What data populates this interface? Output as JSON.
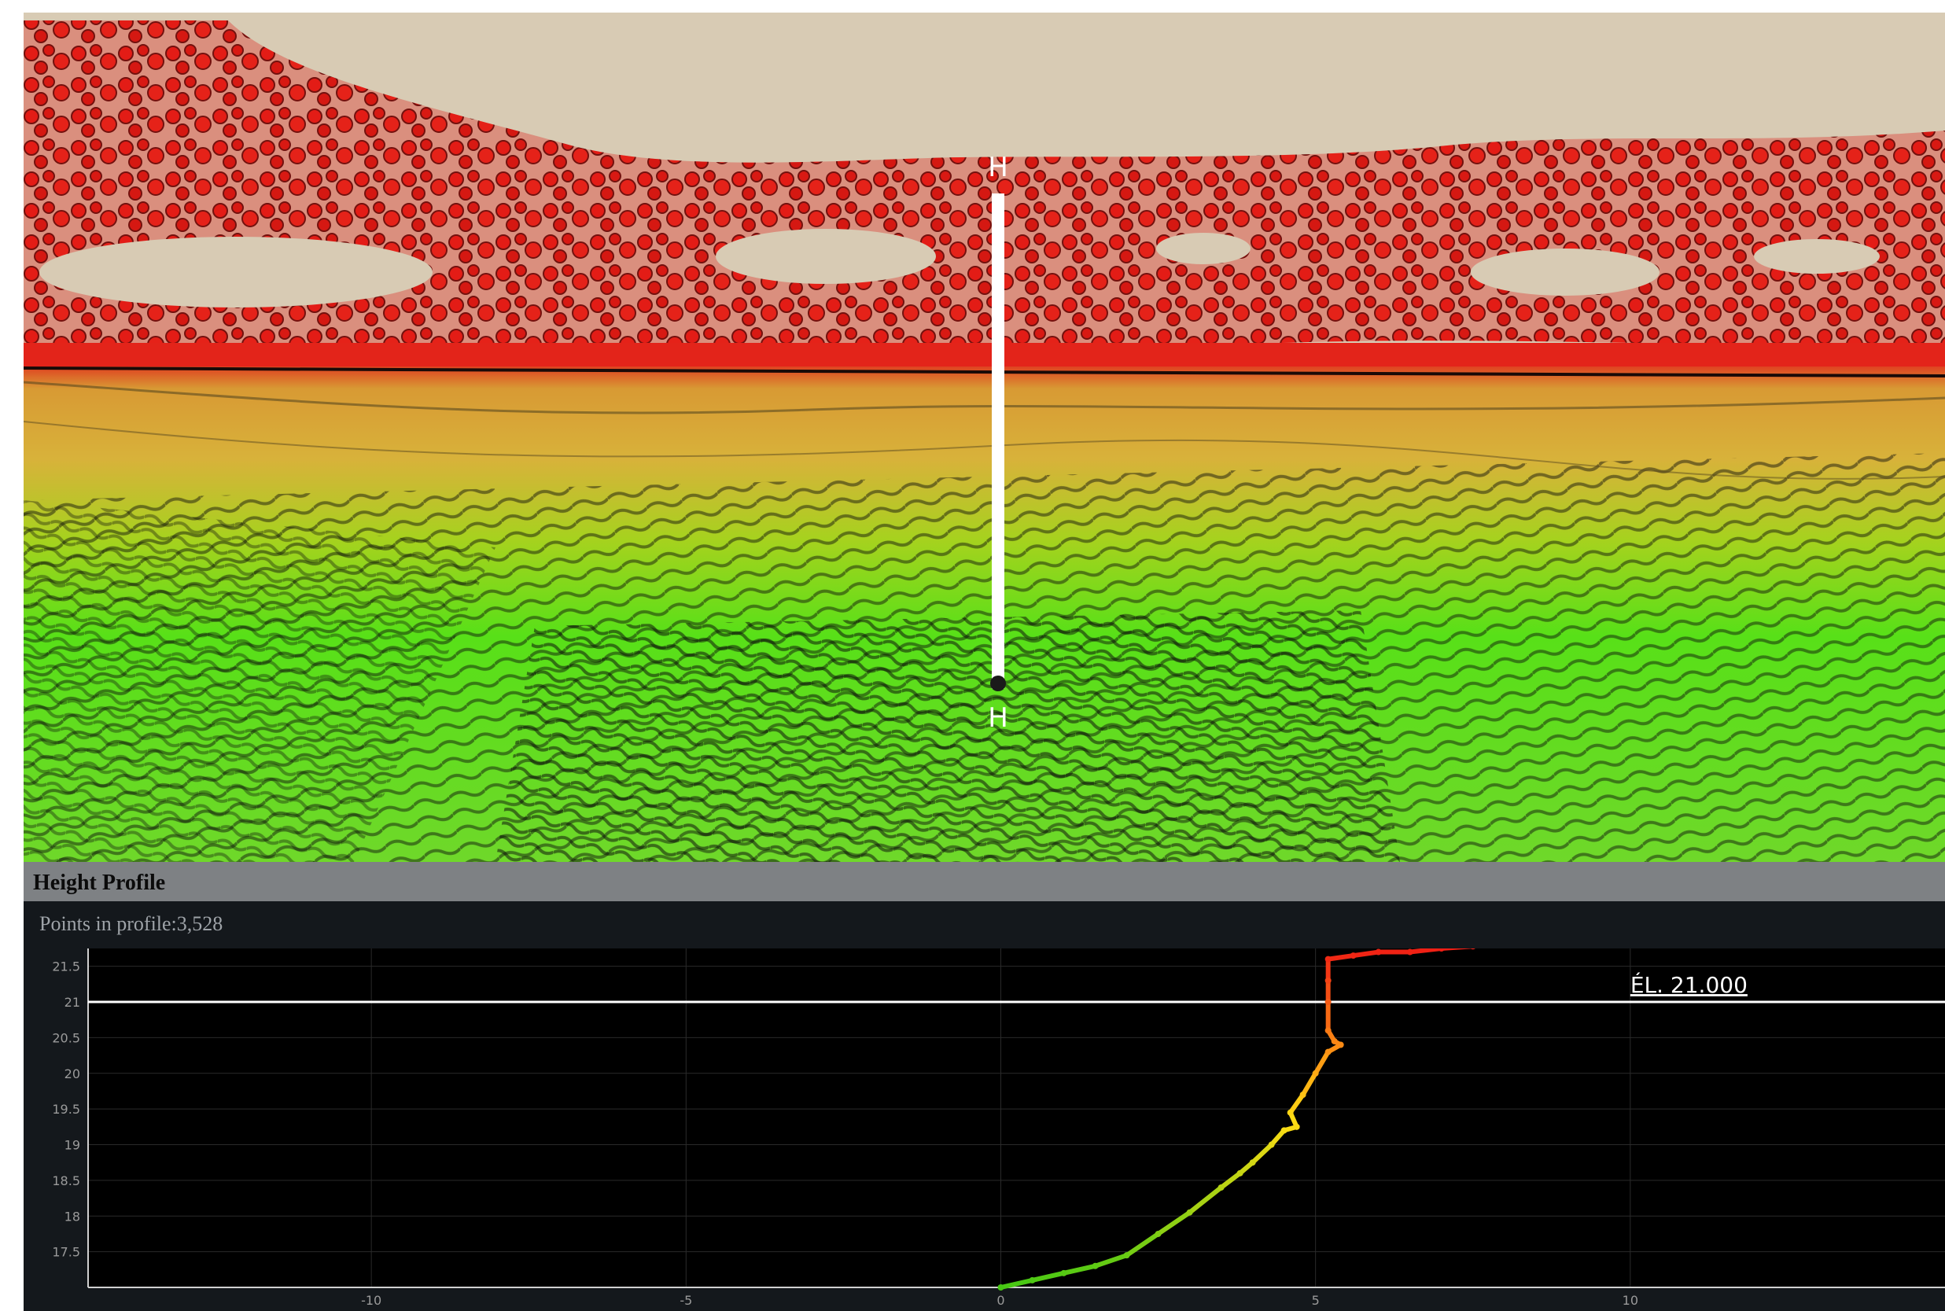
{
  "viewer": {
    "section_marker_top": "H",
    "section_marker_bottom": "H"
  },
  "profile": {
    "title": "Height Profile",
    "points_label": "Points in profile:",
    "points_count": "3,528",
    "elevation_annotation": "ÉL. 21.000"
  },
  "colors": {
    "panel_header": "#7e8184",
    "panel_body": "#14181c",
    "plot_background": "#000000",
    "sky": "#d8cbb4",
    "high": "#e01010",
    "mid": "#e0a020",
    "low": "#33e010"
  },
  "chart_data": {
    "type": "scatter",
    "title": "",
    "xlabel": "",
    "ylabel": "",
    "x_ticks": [
      "-10",
      "-5",
      "0",
      "5",
      "10"
    ],
    "y_ticks": [
      "17.5",
      "18",
      "18.5",
      "19",
      "19.5",
      "20",
      "20.5",
      "21",
      "21.5"
    ],
    "xlim": [
      -14.5,
      15
    ],
    "ylim": [
      17,
      21.75
    ],
    "grid": true,
    "reference_line": {
      "y": 21.0,
      "label": "ÉL. 21.000"
    },
    "series": [
      {
        "points": [
          [
            0.0,
            17.0
          ],
          [
            0.5,
            17.1
          ],
          [
            1.0,
            17.2
          ],
          [
            1.5,
            17.3
          ],
          [
            2.0,
            17.45
          ],
          [
            2.5,
            17.75
          ],
          [
            3.0,
            18.05
          ],
          [
            3.5,
            18.4
          ],
          [
            3.8,
            18.6
          ],
          [
            4.0,
            18.75
          ],
          [
            4.3,
            19.0
          ],
          [
            4.5,
            19.2
          ],
          [
            4.7,
            19.25
          ],
          [
            4.6,
            19.45
          ],
          [
            4.8,
            19.7
          ],
          [
            5.0,
            20.0
          ],
          [
            5.2,
            20.3
          ],
          [
            5.4,
            20.4
          ],
          [
            5.3,
            20.45
          ],
          [
            5.2,
            20.6
          ],
          [
            5.2,
            21.0
          ],
          [
            5.2,
            21.3
          ],
          [
            5.2,
            21.6
          ],
          [
            5.6,
            21.65
          ],
          [
            6.0,
            21.7
          ],
          [
            6.5,
            21.7
          ],
          [
            7.0,
            21.75
          ],
          [
            7.5,
            21.78
          ]
        ]
      }
    ]
  }
}
